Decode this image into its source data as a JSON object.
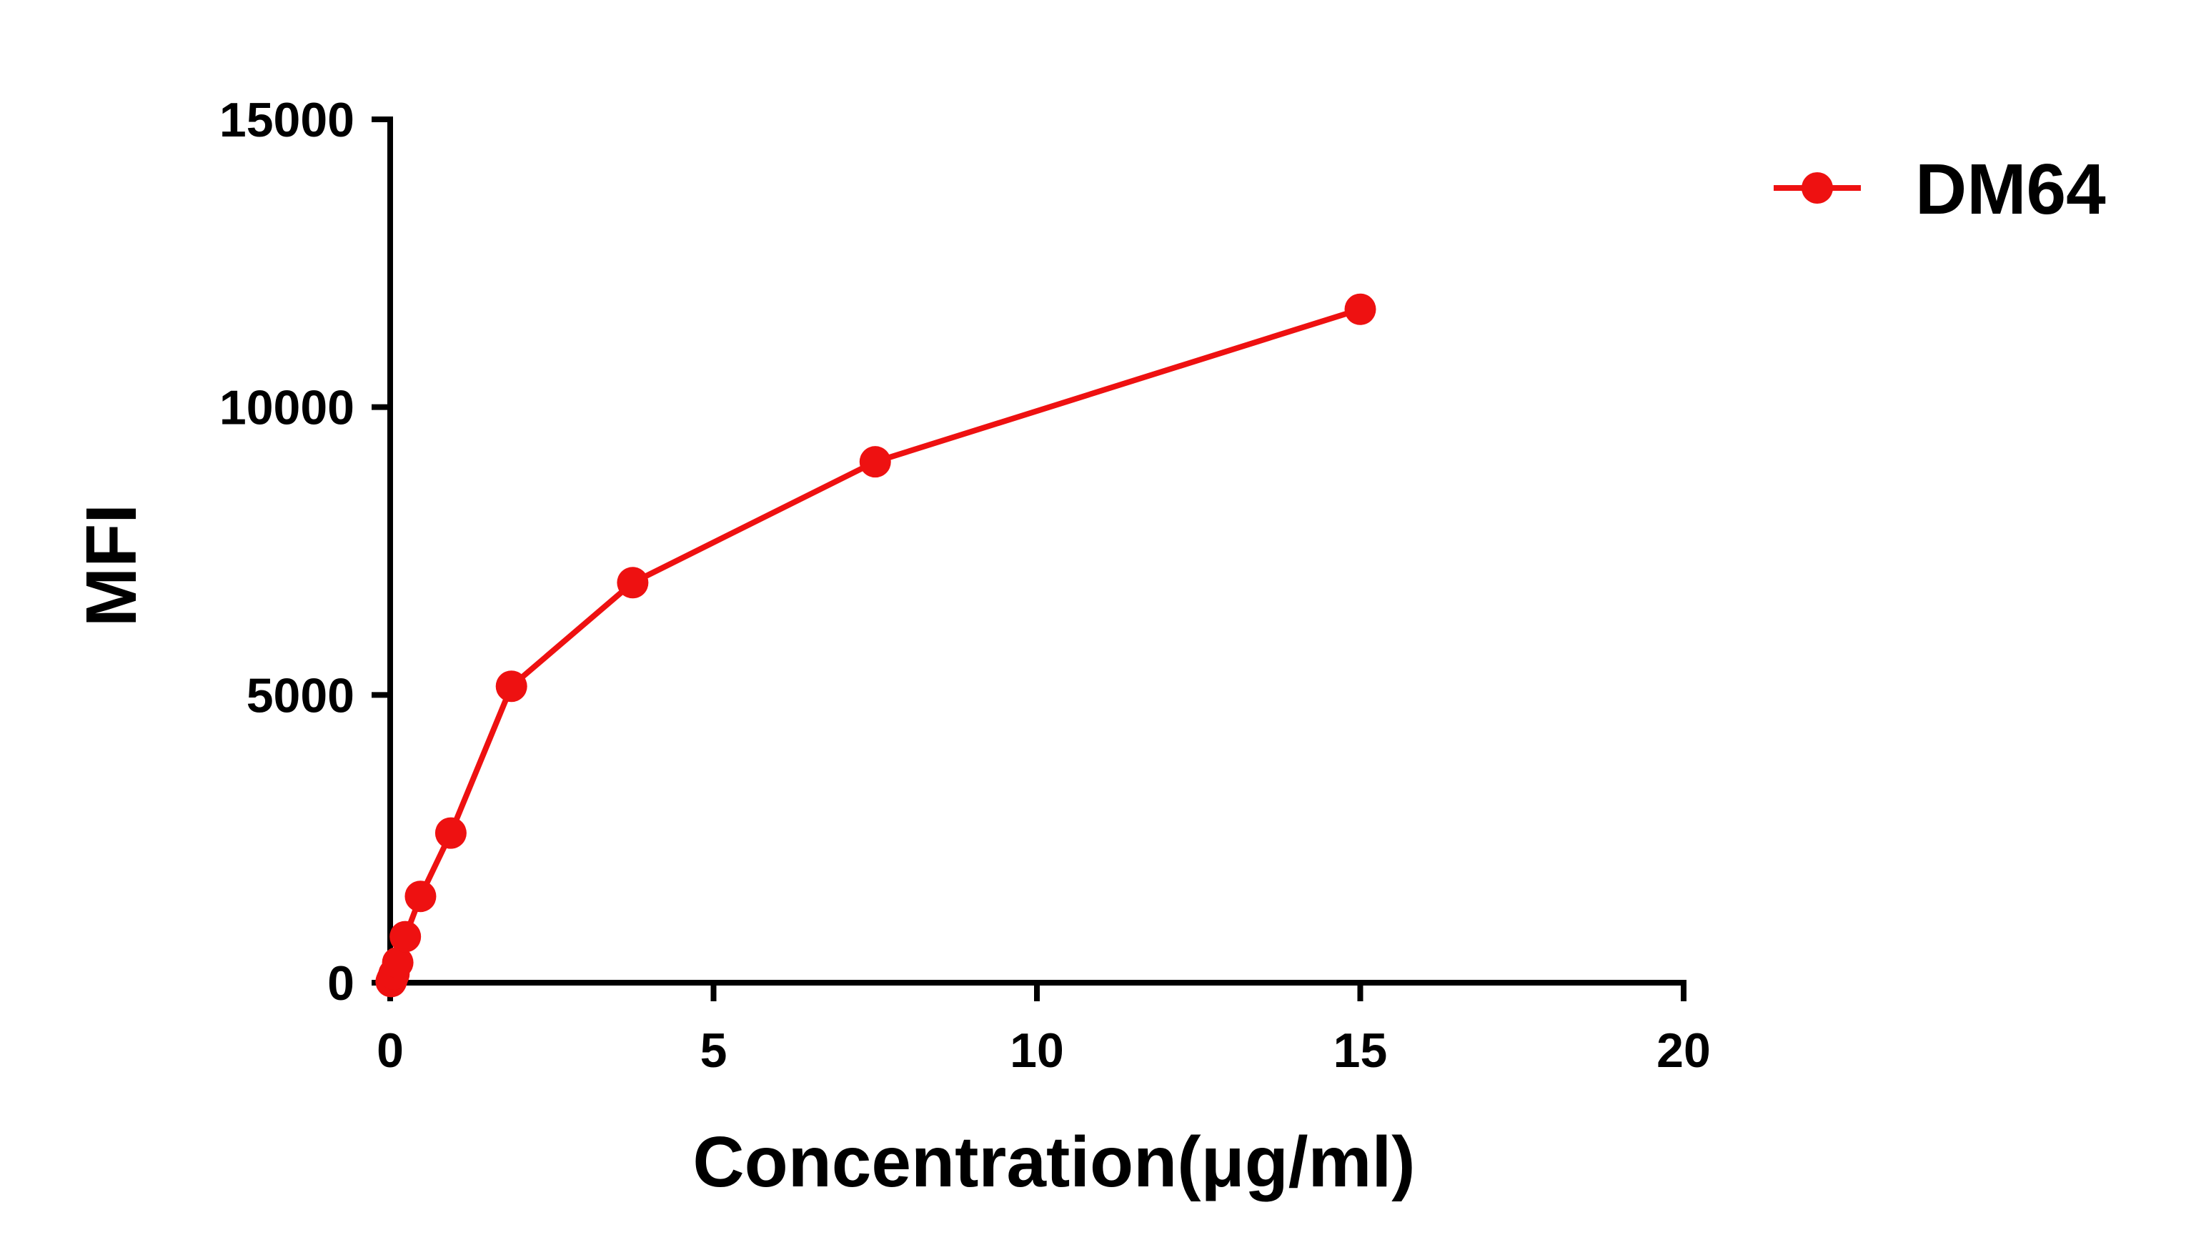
{
  "chart_data": {
    "type": "line",
    "title": "",
    "xlabel": "Concentration(μg/ml)",
    "ylabel": "MFI",
    "xlim": [
      0,
      20
    ],
    "ylim": [
      0,
      15000
    ],
    "xticks": [
      0,
      5,
      10,
      15,
      20
    ],
    "yticks": [
      0,
      5000,
      10000,
      15000
    ],
    "xtick_labels": [
      "0",
      "5",
      "10",
      "15",
      "20"
    ],
    "ytick_labels": [
      "0",
      "5000",
      "10000",
      "15000"
    ],
    "grid": false,
    "legend": {
      "position": "top-right",
      "entries": [
        "DM64"
      ]
    },
    "series": [
      {
        "name": "DM64",
        "color": "#ee1111",
        "marker": "circle",
        "x": [
          0.0146,
          0.0293,
          0.0586,
          0.117,
          0.234,
          0.469,
          0.938,
          1.875,
          3.75,
          7.5,
          15
        ],
        "y": [
          20,
          60,
          150,
          350,
          800,
          1500,
          2600,
          5150,
          6950,
          9050,
          11700
        ]
      }
    ]
  }
}
